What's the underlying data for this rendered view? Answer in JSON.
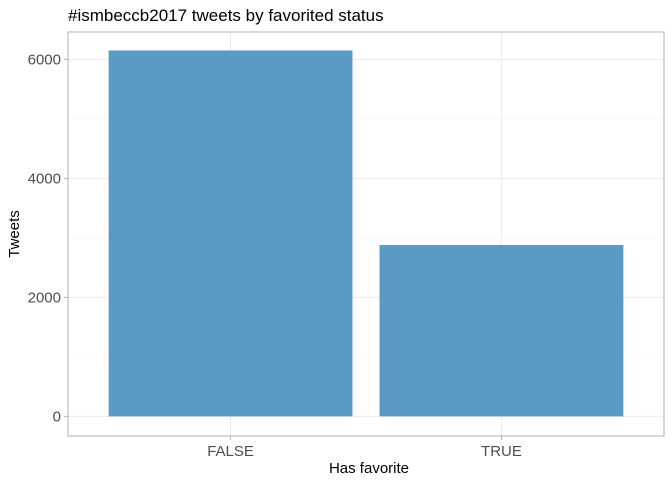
{
  "chart_data": {
    "type": "bar",
    "title": "#ismbeccb2017 tweets by favorited status",
    "xlabel": "Has favorite",
    "ylabel": "Tweets",
    "categories": [
      "FALSE",
      "TRUE"
    ],
    "values": [
      6150,
      2880
    ],
    "ylim": [
      -330,
      6460
    ],
    "yticks": [
      0,
      2000,
      4000,
      6000
    ],
    "ytick_labels": [
      "0",
      "2000",
      "4000",
      "6000"
    ],
    "grid": true,
    "legend": "none",
    "colors": {
      "bar": "#5b9ac4",
      "grid_major": "#ebebeb",
      "grid_minor": "#f5f5f5",
      "panel_border": "#b3b3b3",
      "tick_mark": "#b3b3b3"
    }
  }
}
